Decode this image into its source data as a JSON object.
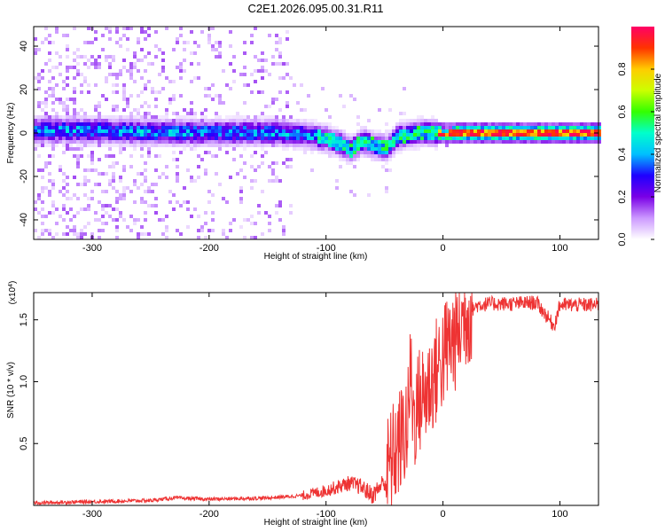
{
  "title": "C2E1.2026.095.00.31.R11",
  "chart_data": [
    {
      "type": "heatmap",
      "xlabel": "Height of straight line (km)",
      "ylabel": "Frequency (Hz)",
      "xlim": [
        -350,
        133
      ],
      "ylim": [
        -49,
        49
      ],
      "xticks": [
        -300,
        -200,
        -100,
        0,
        100
      ],
      "yticks": [
        -40,
        -20,
        0,
        20,
        40
      ],
      "colorbar": {
        "label": "Normalized spectral amplitude",
        "ticks": [
          0.0,
          0.2,
          0.4,
          0.6,
          0.8
        ],
        "range": [
          0,
          1
        ],
        "colors": [
          "#ffffff",
          "#cc99ff",
          "#7a00e6",
          "#1f00ff",
          "#00bfff",
          "#00ffcc",
          "#33ff00",
          "#ccff00",
          "#ffcc00",
          "#ff3300",
          "#ff0066"
        ]
      },
      "ridge": {
        "name": "",
        "points": [
          [
            -350,
            2
          ],
          [
            -300,
            2
          ],
          [
            -250,
            1
          ],
          [
            -200,
            1
          ],
          [
            -150,
            1
          ],
          [
            -120,
            0
          ],
          [
            -100,
            -2
          ],
          [
            -90,
            -4
          ],
          [
            -80,
            -7
          ],
          [
            -70,
            -3
          ],
          [
            -60,
            -5
          ],
          [
            -50,
            -6
          ],
          [
            -45,
            -4
          ],
          [
            -40,
            -1
          ],
          [
            -30,
            0
          ],
          [
            -20,
            1
          ],
          [
            -10,
            1
          ],
          [
            0,
            0
          ],
          [
            20,
            1
          ],
          [
            50,
            1
          ],
          [
            80,
            1
          ],
          [
            100,
            1
          ],
          [
            133,
            1
          ]
        ]
      }
    },
    {
      "type": "line",
      "xlabel": "Height of straight line (km)",
      "ylabel": "SNR (10 * v/v)",
      "exponent_label": "(x10",
      "exponent_sup": "4",
      "xlim": [
        -350,
        133
      ],
      "ylim": [
        0,
        1.72
      ],
      "xticks": [
        -300,
        -200,
        -100,
        0,
        100
      ],
      "yticks": [
        0.5,
        1.0,
        1.5
      ],
      "color": "#ee3333",
      "series": [
        {
          "name": "",
          "x": [
            -350,
            -300,
            -250,
            -230,
            -200,
            -150,
            -120,
            -100,
            -90,
            -80,
            -70,
            -60,
            -50,
            -45,
            -40,
            -35,
            -30,
            -28,
            -25,
            -20,
            -15,
            -10,
            -5,
            0,
            5,
            10,
            15,
            20,
            30,
            40,
            60,
            80,
            95,
            100,
            120,
            133
          ],
          "y": [
            0.02,
            0.03,
            0.04,
            0.06,
            0.05,
            0.06,
            0.08,
            0.12,
            0.15,
            0.18,
            0.15,
            0.08,
            0.2,
            0.35,
            0.45,
            0.55,
            0.65,
            1.1,
            0.7,
            0.85,
            0.9,
            1.0,
            1.1,
            1.2,
            1.3,
            1.35,
            1.45,
            1.55,
            1.62,
            1.63,
            1.63,
            1.64,
            1.45,
            1.62,
            1.62,
            1.62
          ]
        }
      ]
    }
  ]
}
